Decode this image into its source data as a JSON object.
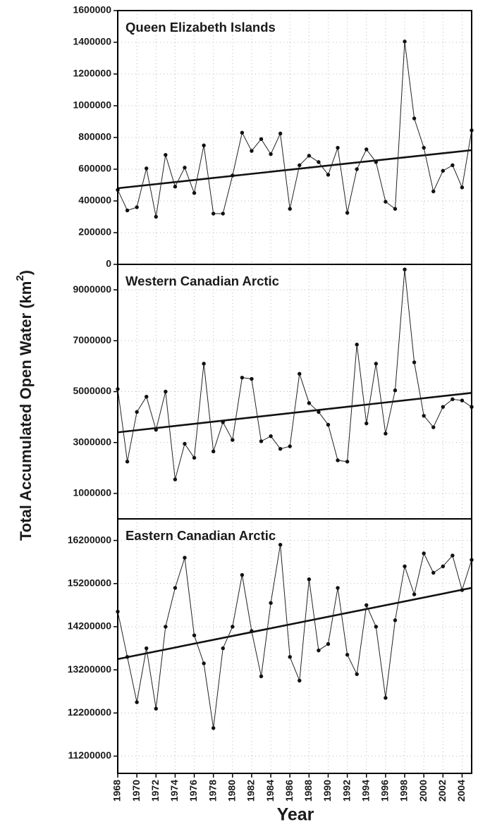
{
  "figure": {
    "ylabel_main": "Total Accumulated Open Water (km",
    "ylabel_superscript": "2",
    "ylabel_close": ")",
    "xlabel": "Year",
    "x_ticks": [
      "1968",
      "1970",
      "1972",
      "1974",
      "1976",
      "1978",
      "1980",
      "1982",
      "1984",
      "1986",
      "1988",
      "1990",
      "1992",
      "1994",
      "1996",
      "1998",
      "2000",
      "2002",
      "2004"
    ],
    "colors": {
      "line": "#222222",
      "trend": "#111111",
      "grid": "#b9b9b9"
    }
  },
  "chart_data": [
    {
      "type": "line",
      "title": "Queen Elizabeth Islands",
      "x": [
        1968,
        1969,
        1970,
        1971,
        1972,
        1973,
        1974,
        1975,
        1976,
        1977,
        1978,
        1979,
        1980,
        1981,
        1982,
        1983,
        1984,
        1985,
        1986,
        1987,
        1988,
        1989,
        1990,
        1991,
        1992,
        1993,
        1994,
        1995,
        1996,
        1997,
        1998,
        1999,
        2000,
        2001,
        2002,
        2003,
        2004,
        2005
      ],
      "values": [
        470000,
        340000,
        360000,
        605000,
        300000,
        690000,
        490000,
        610000,
        450000,
        750000,
        320000,
        320000,
        560000,
        830000,
        715000,
        790000,
        695000,
        825000,
        350000,
        625000,
        685000,
        645000,
        565000,
        735000,
        325000,
        600000,
        725000,
        645000,
        395000,
        350000,
        1405000,
        920000,
        735000,
        460000,
        590000,
        625000,
        485000,
        845000
      ],
      "trend": [
        [
          1968,
          480000
        ],
        [
          2005,
          720000
        ]
      ],
      "yticks": [
        "0",
        "200000",
        "400000",
        "600000",
        "800000",
        "1000000",
        "1200000",
        "1400000",
        "1600000"
      ],
      "ytick_values": [
        0,
        200000,
        400000,
        600000,
        800000,
        1000000,
        1200000,
        1400000,
        1600000
      ],
      "ylim": [
        0,
        1600000
      ],
      "xlim": [
        1968,
        2005
      ],
      "grid": true
    },
    {
      "type": "line",
      "title": "Western Canadian Arctic",
      "x": [
        1968,
        1969,
        1970,
        1971,
        1972,
        1973,
        1974,
        1975,
        1976,
        1977,
        1978,
        1979,
        1980,
        1981,
        1982,
        1983,
        1984,
        1985,
        1986,
        1987,
        1988,
        1989,
        1990,
        1991,
        1992,
        1993,
        1994,
        1995,
        1996,
        1997,
        1998,
        1999,
        2000,
        2001,
        2002,
        2003,
        2004,
        2005
      ],
      "values": [
        5100000,
        2250000,
        4200000,
        4800000,
        3500000,
        5000000,
        1550000,
        2950000,
        2400000,
        6100000,
        2650000,
        3800000,
        3100000,
        5550000,
        5500000,
        3050000,
        3250000,
        2750000,
        2850000,
        5700000,
        4550000,
        4200000,
        3700000,
        2300000,
        2250000,
        6850000,
        3750000,
        6100000,
        3350000,
        5050000,
        9800000,
        6150000,
        4050000,
        3600000,
        4400000,
        4700000,
        4650000,
        4400000
      ],
      "trend": [
        [
          1968,
          3400000
        ],
        [
          2005,
          4950000
        ]
      ],
      "yticks": [
        "1000000",
        "3000000",
        "5000000",
        "7000000",
        "9000000"
      ],
      "ytick_values": [
        1000000,
        3000000,
        5000000,
        7000000,
        9000000
      ],
      "ylim": [
        0,
        10000000
      ],
      "xlim": [
        1968,
        2005
      ],
      "grid": true
    },
    {
      "type": "line",
      "title": "Eastern Canadian Arctic",
      "x": [
        1968,
        1969,
        1970,
        1971,
        1972,
        1973,
        1974,
        1975,
        1976,
        1977,
        1978,
        1979,
        1980,
        1981,
        1982,
        1983,
        1984,
        1985,
        1986,
        1987,
        1988,
        1989,
        1990,
        1991,
        1992,
        1993,
        1994,
        1995,
        1996,
        1997,
        1998,
        1999,
        2000,
        2001,
        2002,
        2003,
        2004,
        2005
      ],
      "values": [
        14550000,
        13500000,
        12450000,
        13700000,
        12300000,
        14200000,
        15100000,
        15800000,
        14000000,
        13350000,
        11850000,
        13700000,
        14200000,
        15400000,
        14100000,
        13050000,
        14750000,
        16100000,
        13500000,
        12950000,
        15300000,
        13650000,
        13800000,
        15100000,
        13550000,
        13100000,
        14700000,
        14200000,
        12550000,
        14350000,
        15600000,
        14950000,
        15900000,
        15450000,
        15600000,
        15850000,
        15050000,
        15750000
      ],
      "trend": [
        [
          1968,
          13450000
        ],
        [
          2005,
          15100000
        ]
      ],
      "yticks": [
        "11200000",
        "12200000",
        "13200000",
        "14200000",
        "15200000",
        "16200000"
      ],
      "ytick_values": [
        11200000,
        12200000,
        13200000,
        14200000,
        15200000,
        16200000
      ],
      "ylim": [
        10800000,
        16700000
      ],
      "xlim": [
        1968,
        2005
      ],
      "grid": true
    }
  ]
}
